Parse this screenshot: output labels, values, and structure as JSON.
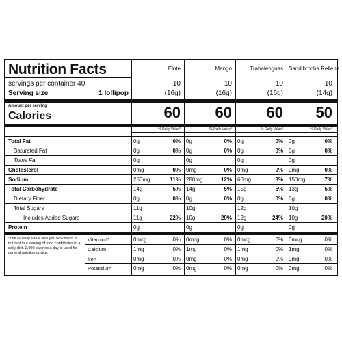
{
  "title": "Nutrition Facts",
  "servings_per_container": "servings per container 40",
  "serving_size_label": "Serving size",
  "serving_size_value": "1 lollipop",
  "amount_per_serving": "Amount per serving",
  "calories_label": "Calories",
  "daily_value_header": "% Daily Value*",
  "products": [
    {
      "name": "Elote",
      "servings": "10",
      "size": "(16g)",
      "calories": "60"
    },
    {
      "name": "Mango",
      "servings": "10",
      "size": "(16g)",
      "calories": "60"
    },
    {
      "name": "Trabalenguas",
      "servings": "10",
      "size": "(16g)",
      "calories": "60"
    },
    {
      "name": "Sandibrocha Rellena",
      "servings": "10",
      "size": "(14g)",
      "calories": "50"
    }
  ],
  "nutrients": [
    {
      "label": "Total Fat",
      "style": "bold",
      "values": [
        [
          "0g",
          "0%"
        ],
        [
          "0g",
          "0%"
        ],
        [
          "0g",
          "0%"
        ],
        [
          "0g",
          "0%"
        ]
      ]
    },
    {
      "label": "Saturated Fat",
      "style": "indent",
      "values": [
        [
          "0g",
          "0%"
        ],
        [
          "0g",
          "0%"
        ],
        [
          "0g",
          "0%"
        ],
        [
          "0g",
          "0%"
        ]
      ]
    },
    {
      "label": "Trans Fat",
      "style": "indent-italic",
      "values": [
        [
          "0g",
          ""
        ],
        [
          "0g",
          ""
        ],
        [
          "0g",
          ""
        ],
        [
          "0g",
          ""
        ]
      ]
    },
    {
      "label": "Cholesterol",
      "style": "bold",
      "values": [
        [
          "0mg",
          "0%"
        ],
        [
          "0mg",
          "0%"
        ],
        [
          "0mg",
          "0%"
        ],
        [
          "0mg",
          "0%"
        ]
      ]
    },
    {
      "label": "Sodium",
      "style": "bold",
      "values": [
        [
          "250mg",
          "11%"
        ],
        [
          "280mg",
          "12%"
        ],
        [
          "60mg",
          "3%"
        ],
        [
          "150mg",
          "7%"
        ]
      ]
    },
    {
      "label": "Total Carbohydrate",
      "style": "bold",
      "values": [
        [
          "14g",
          "5%"
        ],
        [
          "14g",
          "5%"
        ],
        [
          "15g",
          "5%"
        ],
        [
          "13g",
          "5%"
        ]
      ]
    },
    {
      "label": "Dietary Fiber",
      "style": "indent",
      "values": [
        [
          "0g",
          "0%"
        ],
        [
          "0g",
          "0%"
        ],
        [
          "0g",
          "0%"
        ],
        [
          "0g",
          "0%"
        ]
      ]
    },
    {
      "label": "Total Sugars",
      "style": "indent",
      "values": [
        [
          "11g",
          ""
        ],
        [
          "10g",
          ""
        ],
        [
          "12g",
          ""
        ],
        [
          "10g",
          ""
        ]
      ]
    },
    {
      "label": "Includes Added Sugars",
      "style": "indent2",
      "values": [
        [
          "11g",
          "22%"
        ],
        [
          "10g",
          "20%"
        ],
        [
          "12g",
          "24%"
        ],
        [
          "10g",
          "20%"
        ]
      ]
    },
    {
      "label": "Protein",
      "style": "bold",
      "values": [
        [
          "0g",
          ""
        ],
        [
          "0g",
          ""
        ],
        [
          "0g",
          ""
        ],
        [
          "0g",
          ""
        ]
      ]
    }
  ],
  "footnote": "*The % Daily Value tells you how much a nutrient in a serving of food contributes to a daily diet. 2,000 calories a day is used for general nutrition advice.",
  "vitamins": [
    {
      "label": "Vitamin D",
      "values": [
        [
          "0mcg",
          "0%"
        ],
        [
          "0mcg",
          "0%"
        ],
        [
          "0mcg",
          "0%"
        ],
        [
          "0mcg",
          "0%"
        ]
      ]
    },
    {
      "label": "Calcium",
      "values": [
        [
          "1mg",
          "0%"
        ],
        [
          "1mg",
          "0%"
        ],
        [
          "1mg",
          "0%"
        ],
        [
          "1mg",
          "0%"
        ]
      ]
    },
    {
      "label": "Iron",
      "values": [
        [
          "0mg",
          "0%"
        ],
        [
          "0mg",
          "0%"
        ],
        [
          "0mg",
          "0%"
        ],
        [
          "0mg",
          "0%"
        ]
      ]
    },
    {
      "label": "Potassium",
      "values": [
        [
          "0mg",
          "0%"
        ],
        [
          "0mg",
          "0%"
        ],
        [
          "0mg",
          "0%"
        ],
        [
          "0mg",
          "0%"
        ]
      ]
    }
  ]
}
